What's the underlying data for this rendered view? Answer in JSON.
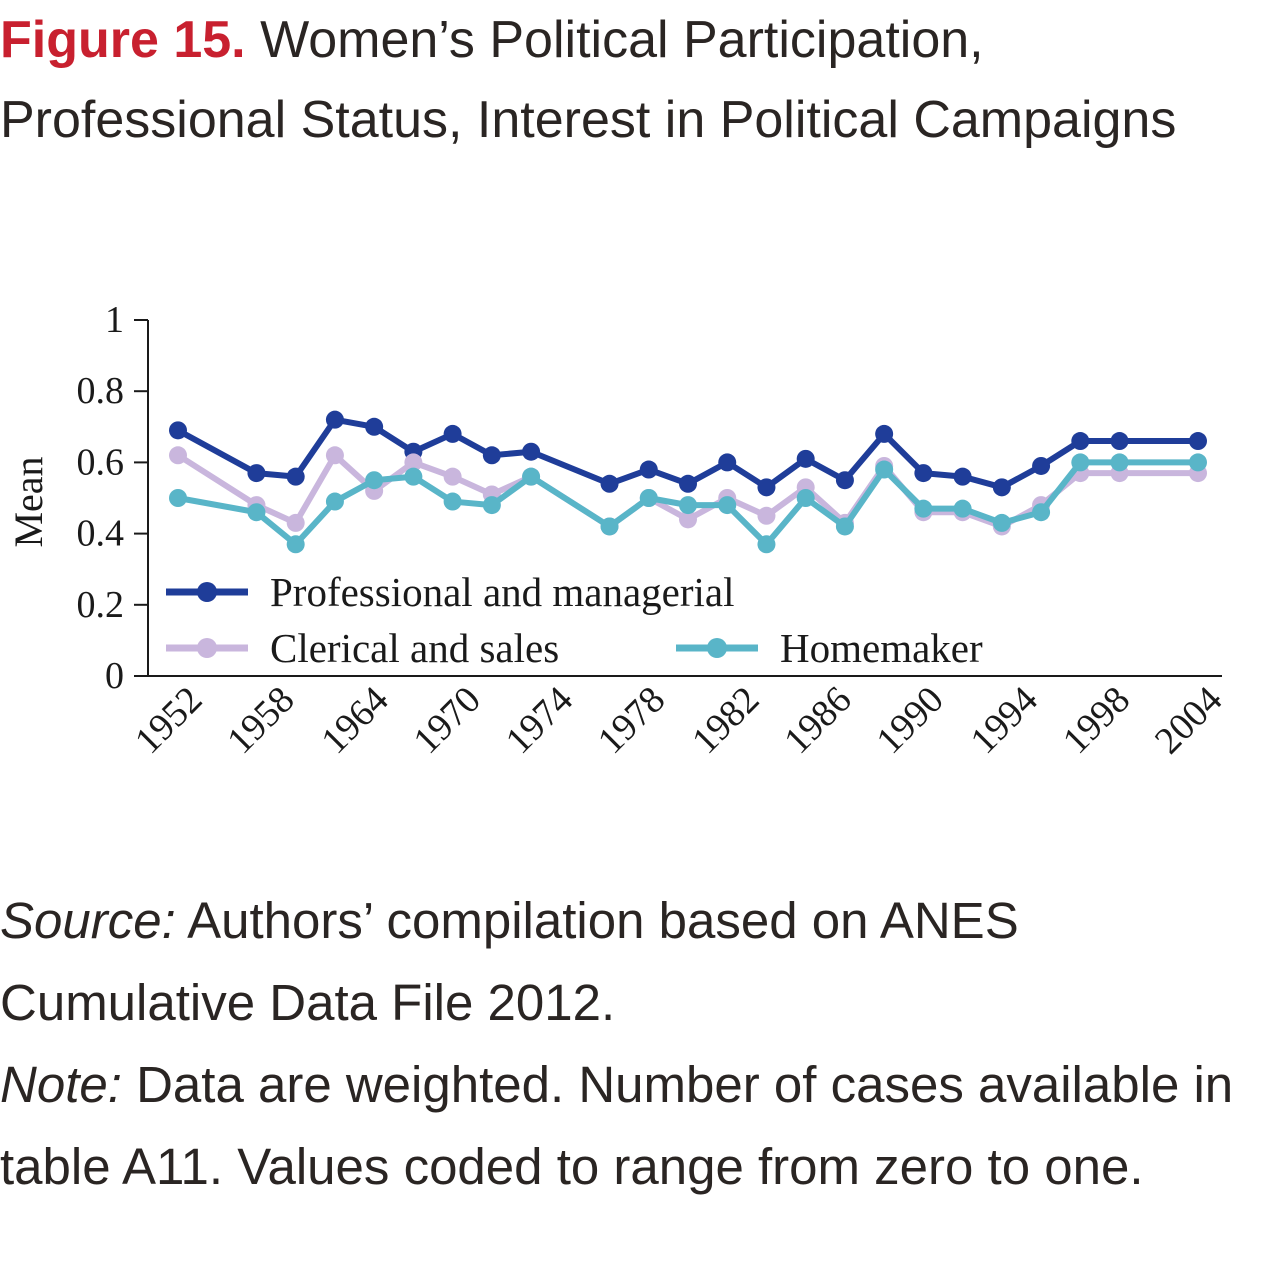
{
  "figure": {
    "label": "Figure 15.",
    "title": "Women’s Political Participation, Professional Status, Interest in Political Campaigns"
  },
  "notes": {
    "source_label": "Source:",
    "source_text": "Authors’ compilation based on ANES Cumulative Data File 2012.",
    "note_label": "Note:",
    "note_text": "Data are weighted. Number of cases available in table A11. Values coded to range from zero to one."
  },
  "chart_data": {
    "type": "line",
    "ylabel": "Mean",
    "xlabel": "",
    "ylim": [
      0,
      1
    ],
    "yticks": [
      "0",
      "0.2",
      "0.4",
      "0.6",
      "0.8",
      "1"
    ],
    "ytick_values": [
      0,
      0.2,
      0.4,
      0.6,
      0.8,
      1
    ],
    "xlim": [
      1951,
      2005
    ],
    "xticks": [
      "1952",
      "1958",
      "1964",
      "1970",
      "1974",
      "1978",
      "1982",
      "1986",
      "1990",
      "1994",
      "1998",
      "2004"
    ],
    "xtick_values": [
      1952,
      1957.8,
      1963.6,
      1969.5,
      1975.3,
      1981.1,
      1987,
      1992.8,
      1998.6,
      2004.4,
      2010.3,
      2016.1
    ],
    "grid": false,
    "legend_position": "bottom-left",
    "series": [
      {
        "name": "Professional and managerial",
        "color": "#1f3d99",
        "x": [
          1952,
          1956,
          1958,
          1960,
          1962,
          1964,
          1966,
          1968,
          1970,
          1974,
          1976,
          1978,
          1980,
          1982,
          1984,
          1986,
          1988,
          1990,
          1992,
          1994,
          1996,
          1998,
          2000,
          2004
        ],
        "values": [
          0.69,
          0.57,
          0.56,
          0.72,
          0.7,
          0.63,
          0.68,
          0.62,
          0.63,
          0.54,
          0.58,
          0.54,
          0.6,
          0.53,
          0.61,
          0.55,
          0.68,
          0.57,
          0.56,
          0.53,
          0.59,
          0.66,
          0.66,
          0.66
        ]
      },
      {
        "name": "Clerical and sales",
        "color": "#c9b6dd",
        "x": [
          1952,
          1956,
          1958,
          1960,
          1962,
          1964,
          1966,
          1968,
          1970,
          1974,
          1976,
          1978,
          1980,
          1982,
          1984,
          1986,
          1988,
          1990,
          1992,
          1994,
          1996,
          1998,
          2000,
          2004
        ],
        "values": [
          0.62,
          0.48,
          0.43,
          0.62,
          0.52,
          0.6,
          0.56,
          0.51,
          0.56,
          0.42,
          0.5,
          0.44,
          0.5,
          0.45,
          0.53,
          0.43,
          0.59,
          0.46,
          0.46,
          0.42,
          0.48,
          0.57,
          0.57,
          0.57
        ]
      },
      {
        "name": "Homemaker",
        "color": "#59b5c8",
        "x": [
          1952,
          1956,
          1958,
          1960,
          1962,
          1964,
          1966,
          1968,
          1970,
          1974,
          1976,
          1978,
          1980,
          1982,
          1984,
          1986,
          1988,
          1990,
          1992,
          1994,
          1996,
          1998,
          2000,
          2004
        ],
        "values": [
          0.5,
          0.46,
          0.37,
          0.49,
          0.55,
          0.56,
          0.49,
          0.48,
          0.56,
          0.42,
          0.5,
          0.48,
          0.48,
          0.37,
          0.5,
          0.42,
          0.58,
          0.47,
          0.47,
          0.43,
          0.46,
          0.6,
          0.6,
          0.6
        ]
      }
    ]
  }
}
